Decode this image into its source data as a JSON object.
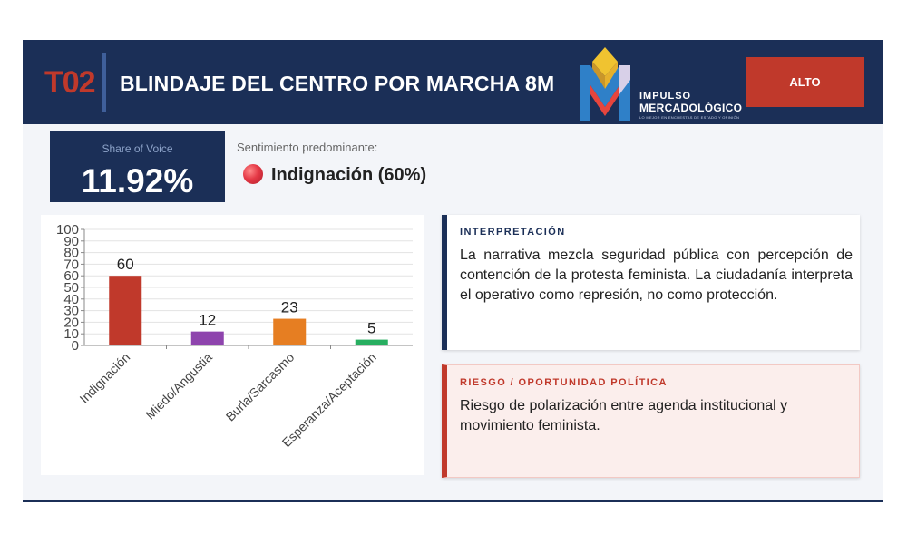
{
  "header": {
    "code": "T02",
    "title": "BLINDAJE DEL CENTRO POR MARCHA 8M",
    "badge": "ALTO",
    "logo": {
      "line1": "IMPULSO",
      "line2": "MERCADOLÓGICO",
      "tagline": "LO MEJOR EN ENCUESTAS DE ESTADO Y OPINIÓN"
    }
  },
  "share_of_voice": {
    "label": "Share of Voice",
    "value": "11.92%"
  },
  "sentiment": {
    "label": "Sentimiento predominante:",
    "value": "Indignación (60%)"
  },
  "chart_data": {
    "type": "bar",
    "categories": [
      "Indignación",
      "Miedo/Angustia",
      "Burla/Sarcasmo",
      "Esperanza/Aceptación"
    ],
    "values": [
      60,
      12,
      23,
      5
    ],
    "bar_colors": [
      "#c0392b",
      "#8e44ad",
      "#e67e22",
      "#27ae60"
    ],
    "ylim": [
      0,
      100
    ],
    "yticks": [
      0,
      10,
      20,
      30,
      40,
      50,
      60,
      70,
      80,
      90,
      100
    ],
    "grid": true
  },
  "interpretation": {
    "heading": "INTERPRETACIÓN",
    "body": "La narrativa mezcla seguridad pública con percepción de contención de la protesta feminista. La ciudadanía interpreta el operativo como represión, no como protección."
  },
  "risk": {
    "heading": "RIESGO / OPORTUNIDAD POLÍTICA",
    "body": "Riesgo de polarización entre agenda institucional y movimiento feminista."
  }
}
